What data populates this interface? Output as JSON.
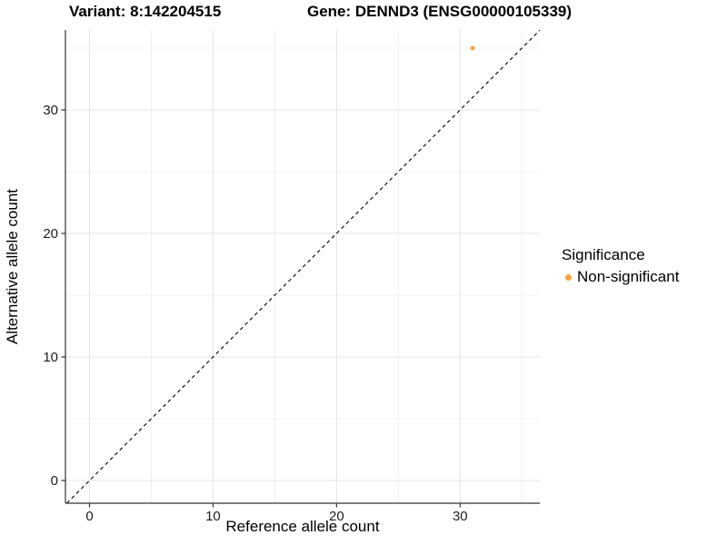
{
  "titles": {
    "left": "Variant: 8:142204515",
    "right": "Gene: DENND3 (ENSG00000105339)"
  },
  "legend": {
    "title": "Significance",
    "items": [
      {
        "label": "Non-significant",
        "color": "#F9A242"
      }
    ]
  },
  "chart_data": {
    "type": "scatter",
    "xlabel": "Reference allele count",
    "ylabel": "Alternative allele count",
    "xlim": [
      -1.95,
      36.45
    ],
    "ylim": [
      -1.84,
      36.47
    ],
    "x_ticks": [
      0,
      10,
      20,
      30
    ],
    "y_ticks": [
      0,
      10,
      20,
      30
    ],
    "x_minor_ticks": [
      5,
      15,
      25,
      35
    ],
    "y_minor_ticks": [
      5,
      15,
      25,
      35
    ],
    "grid": "major+minor",
    "legend_position": "right",
    "series": [
      {
        "name": "Non-significant",
        "color": "#F9A242",
        "points": [
          {
            "x": 31,
            "y": 35
          }
        ]
      }
    ],
    "reference_line": {
      "slope": 1,
      "intercept": 0,
      "style": "dashed",
      "color": "#000000"
    },
    "colors": {
      "axis": "#333333",
      "tick_label": "#1c1c1c",
      "grid_major": "#e4e4e4",
      "grid_minor": "#f0f0f0"
    }
  }
}
